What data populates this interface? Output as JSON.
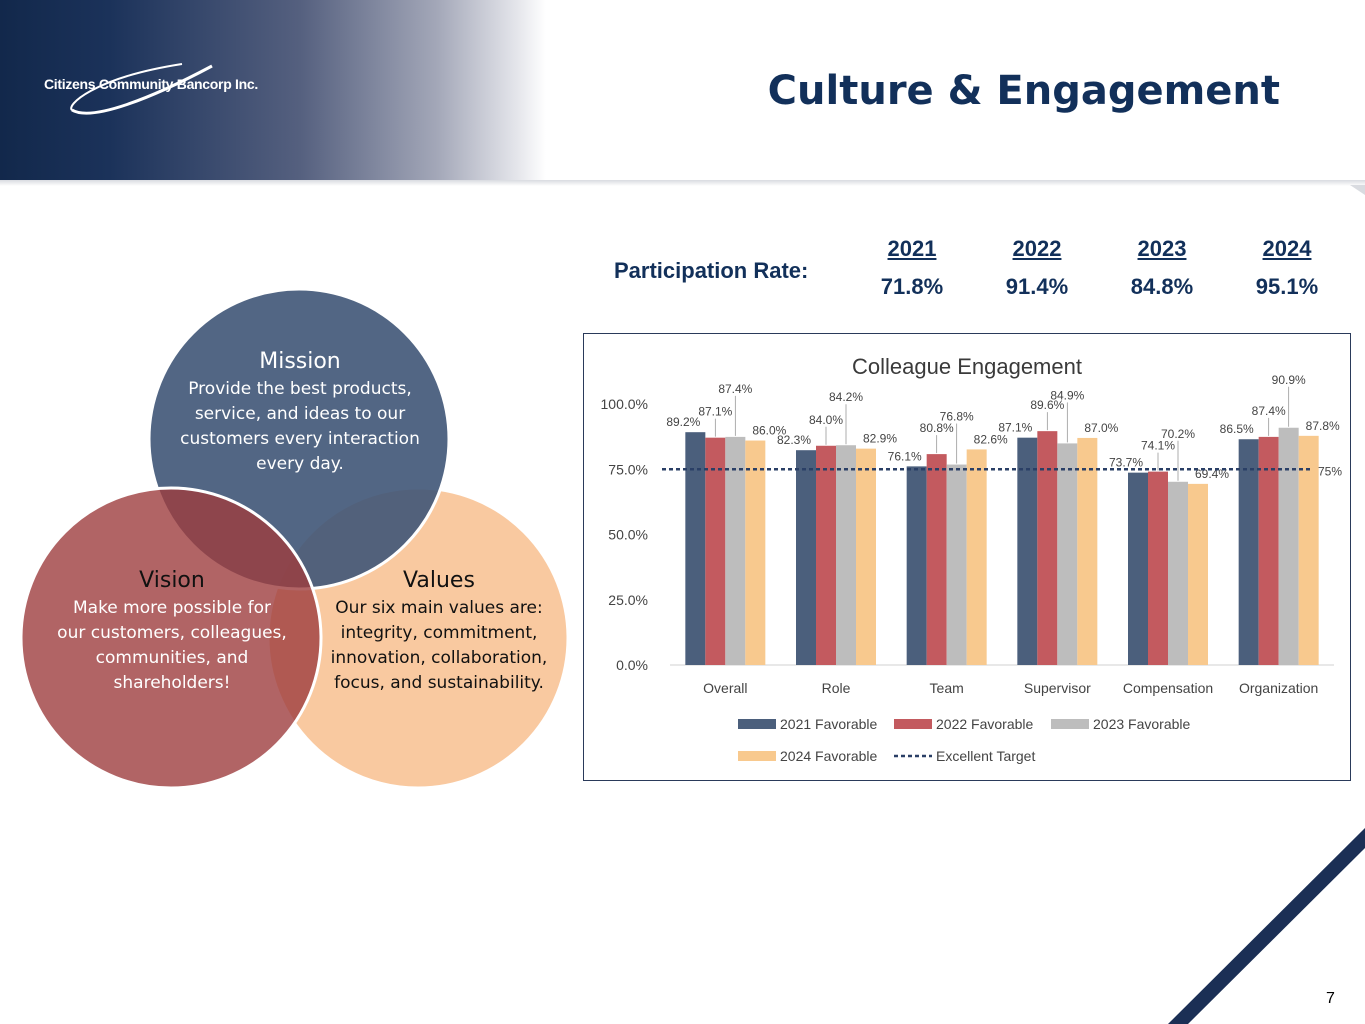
{
  "company": {
    "name": "Citizens Community Bancorp Inc."
  },
  "slide": {
    "title": "Culture & Engagement",
    "page_number": "7"
  },
  "participation": {
    "label": "Participation Rate:",
    "columns": [
      {
        "year": "2021",
        "value": "71.8%"
      },
      {
        "year": "2022",
        "value": "91.4%"
      },
      {
        "year": "2023",
        "value": "84.8%"
      },
      {
        "year": "2024",
        "value": "95.1%"
      }
    ]
  },
  "venn": {
    "mission": {
      "title": "Mission",
      "lines": [
        "Provide the best products,",
        "service, and ideas to our",
        "customers every interaction",
        "every day."
      ],
      "color": "#3f5577"
    },
    "vision": {
      "title": "Vision",
      "lines": [
        "Make more possible for",
        "our customers, colleagues,",
        "communities, and",
        "shareholders!"
      ],
      "color": "#9e3d3f"
    },
    "values": {
      "title": "Values",
      "lines": [
        "Our six main values are:",
        "integrity, commitment,",
        "innovation, collaboration,",
        "focus, and sustainability."
      ],
      "color": "#f8c08f"
    }
  },
  "chart_data": {
    "type": "bar",
    "title": "Colleague Engagement",
    "categories": [
      "Overall",
      "Role",
      "Team",
      "Supervisor",
      "Compensation",
      "Organization"
    ],
    "series": [
      {
        "name": "2021 Favorable",
        "color": "#4b5f7c",
        "values": [
          89.2,
          82.3,
          76.1,
          87.1,
          73.7,
          86.5
        ],
        "labels": [
          "89.2%",
          "82.3%",
          "76.1%",
          "87.1%",
          "73.7%",
          "86.5%"
        ]
      },
      {
        "name": "2022 Favorable",
        "color": "#c35a5f",
        "values": [
          87.1,
          84.0,
          80.8,
          89.6,
          74.1,
          87.4
        ],
        "labels": [
          "87.1%",
          "84.0%",
          "80.8%",
          "89.6%",
          "74.1%",
          "87.4%"
        ]
      },
      {
        "name": "2023 Favorable",
        "color": "#bdbdbd",
        "values": [
          87.4,
          84.2,
          76.8,
          84.9,
          70.2,
          90.9
        ],
        "labels": [
          "87.4%",
          "84.2%",
          "76.8%",
          "84.9%",
          "70.2%",
          "90.9%"
        ]
      },
      {
        "name": "2024 Favorable",
        "color": "#f8c98e",
        "values": [
          86.0,
          82.9,
          82.6,
          87.0,
          69.4,
          87.8
        ],
        "labels": [
          "86.0%",
          "82.9%",
          "82.6%",
          "87.0%",
          "69.4%",
          "87.8%"
        ]
      }
    ],
    "target": {
      "name": "Excellent Target",
      "value": 75,
      "label": "75%",
      "color": "#2a3f66"
    },
    "yticks": [
      "0.0%",
      "25.0%",
      "50.0%",
      "75.0%",
      "100.0%"
    ],
    "ylim": [
      0,
      100
    ],
    "grid": false,
    "legend": "bottom"
  }
}
